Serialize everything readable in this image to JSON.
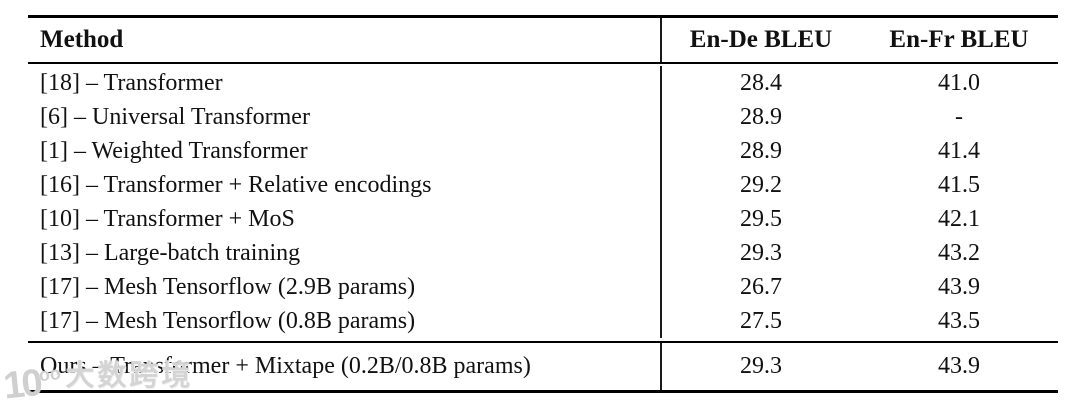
{
  "table": {
    "header": {
      "method": "Method",
      "en_de": "En-De BLEU",
      "en_fr": "En-Fr BLEU"
    },
    "rows": [
      {
        "method": "[18] – Transformer",
        "en_de": "28.4",
        "en_fr": "41.0"
      },
      {
        "method": "[6] – Universal Transformer",
        "en_de": "28.9",
        "en_fr": "-"
      },
      {
        "method": "[1] – Weighted Transformer",
        "en_de": "28.9",
        "en_fr": "41.4"
      },
      {
        "method": "[16] – Transformer + Relative encodings",
        "en_de": "29.2",
        "en_fr": "41.5"
      },
      {
        "method": "[10] – Transformer + MoS",
        "en_de": "29.5",
        "en_fr": "42.1"
      },
      {
        "method": "[13] – Large-batch training",
        "en_de": "29.3",
        "en_fr": "43.2"
      },
      {
        "method": "[17] – Mesh Tensorflow (2.9B params)",
        "en_de": "26.7",
        "en_fr": "43.9"
      },
      {
        "method": "[17] – Mesh Tensorflow (0.8B params)",
        "en_de": "27.5",
        "en_fr": "43.5"
      }
    ],
    "footer": {
      "method": "Ours – Transformer + Mixtape (0.2B/0.8B params)",
      "en_de": "29.3",
      "en_fr": "43.9"
    }
  },
  "watermark": {
    "logo": "10",
    "logo_sup": "oo",
    "text": "大数跨境"
  }
}
